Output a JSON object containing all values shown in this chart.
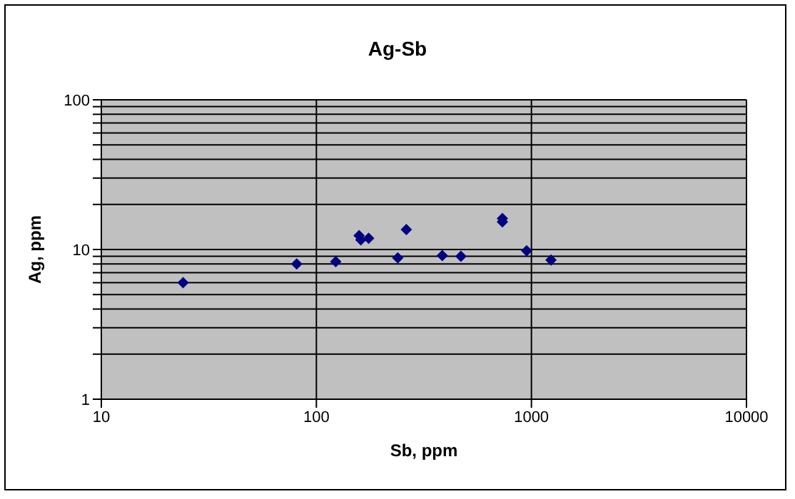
{
  "chart_data": {
    "type": "scatter",
    "title": "Ag-Sb",
    "xlabel": "Sb, ppm",
    "ylabel": "Ag, ppm",
    "x": [
      24,
      81,
      123,
      158,
      161,
      175,
      239,
      262,
      385,
      470,
      733,
      733,
      950,
      1233
    ],
    "values": [
      6.0,
      8.0,
      8.3,
      12.4,
      11.6,
      11.9,
      8.8,
      13.6,
      9.1,
      9.0,
      16.1,
      15.3,
      9.8,
      8.5
    ],
    "color": "#000080",
    "marker": "diamond",
    "log": "xy",
    "grid": true,
    "xlim": [
      10,
      10000
    ],
    "xticks": [
      10,
      100,
      1000,
      10000
    ],
    "ylim": [
      1,
      100
    ],
    "yticks": [
      1,
      {
        "value": 2,
        "label": null
      },
      {
        "value": 3,
        "label": null
      },
      {
        "value": 4,
        "label": null
      },
      {
        "value": 5,
        "label": null
      },
      {
        "value": 6,
        "label": null
      },
      {
        "value": 7,
        "label": null
      },
      {
        "value": 8,
        "label": null
      },
      {
        "value": 9,
        "label": null
      },
      10,
      {
        "value": 20,
        "label": null
      },
      {
        "value": 30,
        "label": null
      },
      {
        "value": 40,
        "label": null
      },
      {
        "value": 50,
        "label": null
      },
      {
        "value": 60,
        "label": null
      },
      {
        "value": 70,
        "label": null
      },
      {
        "value": 80,
        "label": null
      },
      {
        "value": 90,
        "label": null
      },
      100
    ]
  }
}
